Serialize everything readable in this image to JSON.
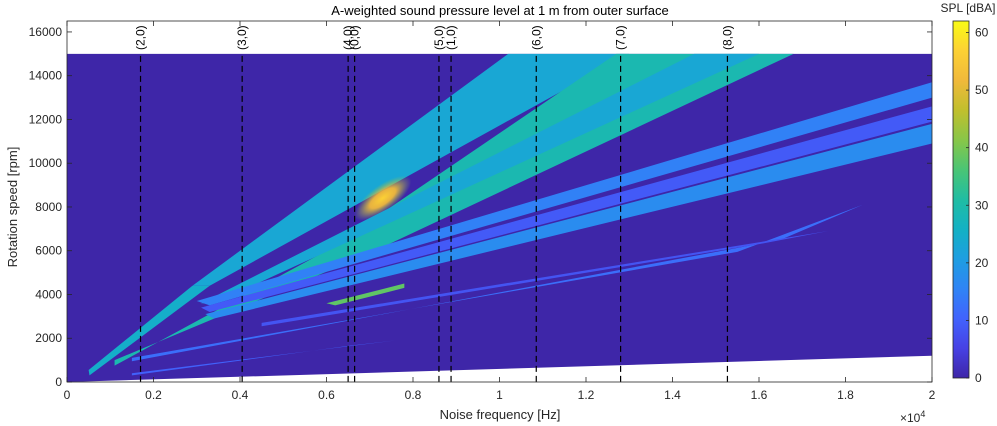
{
  "chart_data": {
    "type": "heatmap",
    "title": "A-weighted sound pressure level at 1 m from outer surface",
    "xlabel": "Noise frequency [Hz]",
    "ylabel": "Rotation speed [rpm]",
    "x_exponent_label": "×10",
    "x_exponent_power": "4",
    "xlim": [
      0,
      20000
    ],
    "ylim": [
      0,
      16500
    ],
    "xticks": [
      0,
      2000,
      4000,
      6000,
      8000,
      10000,
      12000,
      14000,
      16000,
      18000,
      20000
    ],
    "xtick_labels": [
      "0",
      "0.2",
      "0.4",
      "0.6",
      "0.8",
      "1",
      "1.2",
      "1.4",
      "1.6",
      "1.8",
      "2"
    ],
    "yticks": [
      0,
      2000,
      4000,
      6000,
      8000,
      10000,
      12000,
      14000,
      16000
    ],
    "ytick_labels": [
      "0",
      "2000",
      "4000",
      "6000",
      "8000",
      "10000",
      "12000",
      "14000",
      "16000"
    ],
    "background_value": 0,
    "grid": false,
    "colorbar": {
      "label": "SPL [dBA]",
      "min": 0,
      "max": 62,
      "ticks": [
        0,
        10,
        20,
        30,
        40,
        50,
        60
      ],
      "tick_labels": [
        "0",
        "10",
        "20",
        "30",
        "40",
        "50",
        "60"
      ],
      "colormap": [
        "#3e26a8",
        "#4741e4",
        "#4163fd",
        "#2f84f5",
        "#1e9ee1",
        "#13b1c4",
        "#20bda3",
        "#4ac575",
        "#88c648",
        "#c1bf2d",
        "#f0b93b",
        "#fcd134",
        "#f9fb15"
      ]
    },
    "data_region": {
      "x_range": [
        0,
        20000
      ],
      "upper_rpm": 15000,
      "lower_boundary": [
        [
          0,
          0
        ],
        [
          20000,
          1200
        ]
      ]
    },
    "bands": [
      {
        "path": [
          [
            500,
            550
          ],
          [
            2900,
            4400
          ],
          [
            3300,
            4400
          ],
          [
            520,
            300
          ]
        ],
        "value": 25
      },
      {
        "path": [
          [
            2900,
            4400
          ],
          [
            10200,
            15000
          ],
          [
            13000,
            15000
          ],
          [
            3300,
            4400
          ]
        ],
        "value": 23
      },
      {
        "path": [
          [
            1100,
            1000
          ],
          [
            6800,
            5700
          ],
          [
            16800,
            15000
          ],
          [
            12700,
            15000
          ],
          [
            6000,
            6000
          ],
          [
            1100,
            750
          ]
        ],
        "value": 29,
        "hotspot": {
          "x": 7300,
          "y": 8400,
          "value": 53
        }
      },
      {
        "path": [
          [
            3100,
            3600
          ],
          [
            14500,
            15000
          ],
          [
            16000,
            15000
          ],
          [
            3400,
            3600
          ]
        ],
        "value": 23
      },
      {
        "path": [
          [
            3000,
            3700
          ],
          [
            20000,
            13700
          ],
          [
            20000,
            13000
          ],
          [
            3300,
            3500
          ]
        ],
        "value": 15
      },
      {
        "path": [
          [
            3100,
            3400
          ],
          [
            20000,
            12600
          ],
          [
            20000,
            11900
          ],
          [
            3300,
            3200
          ]
        ],
        "value": 9
      },
      {
        "path": [
          [
            3200,
            3100
          ],
          [
            20000,
            11800
          ],
          [
            20000,
            10900
          ],
          [
            3400,
            2900
          ]
        ],
        "value": 17
      },
      {
        "path": [
          [
            6000,
            3600
          ],
          [
            7800,
            4500
          ],
          [
            7800,
            4300
          ],
          [
            6200,
            3500
          ]
        ],
        "value": 38
      },
      {
        "path": [
          [
            1500,
            1100
          ],
          [
            15500,
            5950
          ],
          [
            18400,
            8100
          ],
          [
            16500,
            6500
          ],
          [
            1500,
            950
          ]
        ],
        "value": 12
      },
      {
        "path": [
          [
            4500,
            2700
          ],
          [
            17600,
            6900
          ],
          [
            16000,
            6300
          ],
          [
            4500,
            2550
          ]
        ],
        "value": 8
      },
      {
        "path": [
          [
            1500,
            400
          ],
          [
            7600,
            1900
          ],
          [
            6500,
            1650
          ],
          [
            1500,
            300
          ]
        ],
        "value": 10
      }
    ],
    "mode_lines": [
      {
        "label": "(2,0)",
        "x": 1700
      },
      {
        "label": "(3,0)",
        "x": 4050
      },
      {
        "label": "(4,0)",
        "x": 6500
      },
      {
        "label": "(0,0)",
        "x": 6650
      },
      {
        "label": "(5,0)",
        "x": 8600
      },
      {
        "label": "(1,0)",
        "x": 8880
      },
      {
        "label": "(6,0)",
        "x": 10850
      },
      {
        "label": "(7,0)",
        "x": 12800
      },
      {
        "label": "(8,0)",
        "x": 15270
      }
    ]
  }
}
